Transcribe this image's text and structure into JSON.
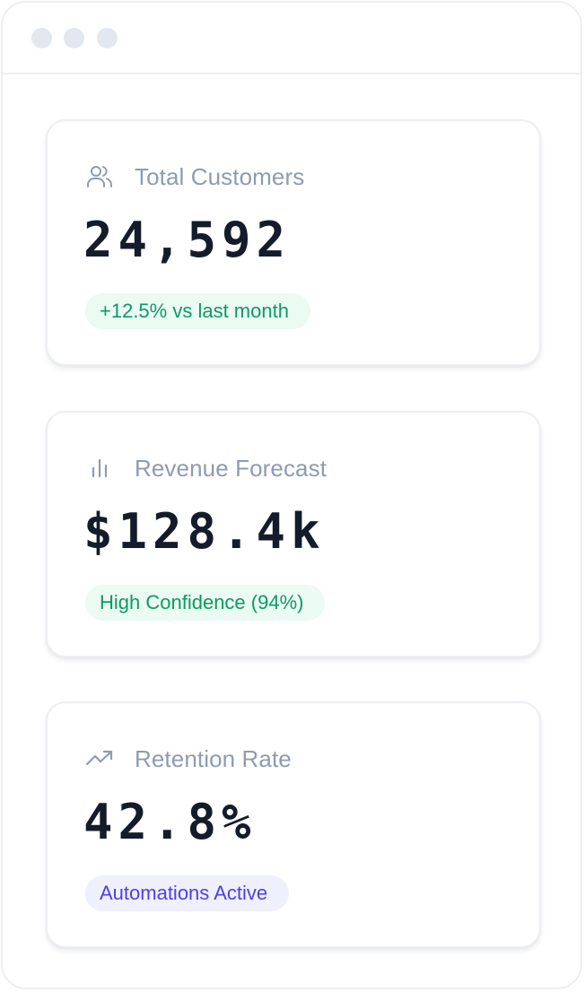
{
  "window": {
    "dots": [
      "dot",
      "dot",
      "dot"
    ]
  },
  "colors": {
    "title_gray": "#8e9bb0",
    "value_dark": "#141c2b",
    "green_text": "#0e9a63",
    "green_bg": "#ebfaf3",
    "purple_text": "#4f3ee6",
    "purple_bg": "#eef0fd"
  },
  "cards": [
    {
      "icon": "users-icon",
      "title": "Total Customers",
      "value": "24,592",
      "badge": "+12.5% vs last month",
      "badge_tone": "green"
    },
    {
      "icon": "bar-chart-icon",
      "title": "Revenue Forecast",
      "value": "$128.4k",
      "badge": "High Confidence (94%)",
      "badge_tone": "green"
    },
    {
      "icon": "trending-up-icon",
      "title": "Retention Rate",
      "value": "42.8%",
      "badge": "Automations Active",
      "badge_tone": "purple"
    }
  ]
}
